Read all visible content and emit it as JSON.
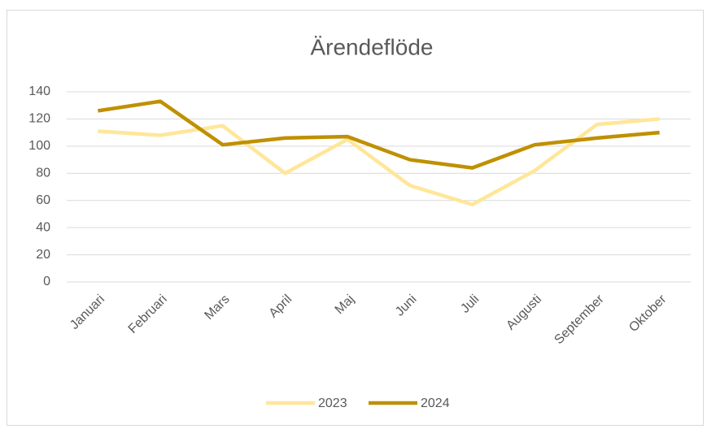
{
  "chart_data": {
    "type": "line",
    "title": "Ärendeflöde",
    "categories": [
      "Januari",
      "Februari",
      "Mars",
      "April",
      "Maj",
      "Juni",
      "Juli",
      "Augusti",
      "September",
      "Oktober"
    ],
    "series": [
      {
        "name": "2023",
        "color": "#ffe699",
        "values": [
          111,
          108,
          115,
          80,
          105,
          71,
          57,
          82,
          116,
          120
        ]
      },
      {
        "name": "2024",
        "color": "#bf9000",
        "values": [
          126,
          133,
          101,
          106,
          107,
          90,
          84,
          101,
          106,
          110
        ]
      }
    ],
    "ylim": [
      0,
      140
    ],
    "yticks": [
      0,
      20,
      40,
      60,
      80,
      100,
      120,
      140
    ],
    "grid": true,
    "legend": "bottom"
  }
}
